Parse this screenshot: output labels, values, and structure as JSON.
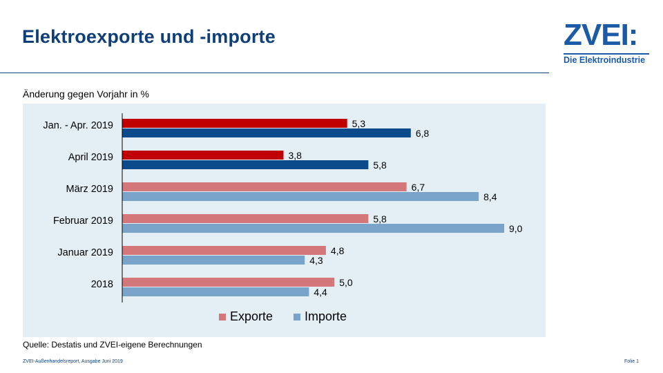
{
  "header": {
    "title": "Elektroexporte und -importe",
    "logo_word": "ZVEI:",
    "logo_subtitle": "Die Elektroindustrie"
  },
  "subtitle": "Änderung gegen Vorjahr in %",
  "source": "Quelle: Destatis und ZVEI-eigene Berechnungen",
  "footer": {
    "report": "ZVEI-Außenhandelsreport,   Ausgabe  Juni 2019",
    "slide": "Folie 1"
  },
  "colors": {
    "exports_highlight": "#c00000",
    "imports_highlight": "#0b4a8b",
    "exports": "#d4777b",
    "imports": "#7aa3c9",
    "title": "#0f3f78"
  },
  "chart_data": {
    "type": "bar",
    "orientation": "horizontal",
    "categories": [
      "Jan. - Apr. 2019",
      "April 2019",
      "März 2019",
      "Februar 2019",
      "Januar 2019",
      "2018"
    ],
    "highlighted_categories": [
      "Jan. - Apr. 2019",
      "April 2019"
    ],
    "series": [
      {
        "name": "Exporte",
        "values": [
          5.3,
          3.8,
          6.7,
          5.8,
          4.8,
          5.0
        ],
        "labels": [
          "5,3",
          "3,8",
          "6,7",
          "5,8",
          "4,8",
          "5,0"
        ]
      },
      {
        "name": "Importe",
        "values": [
          6.8,
          5.8,
          8.4,
          9.0,
          4.3,
          4.4
        ],
        "labels": [
          "6,8",
          "5,8",
          "8,4",
          "9,0",
          "4,3",
          "4,4"
        ]
      }
    ],
    "xlim": [
      0,
      9.0
    ],
    "legend_position": "bottom",
    "grid": false
  }
}
